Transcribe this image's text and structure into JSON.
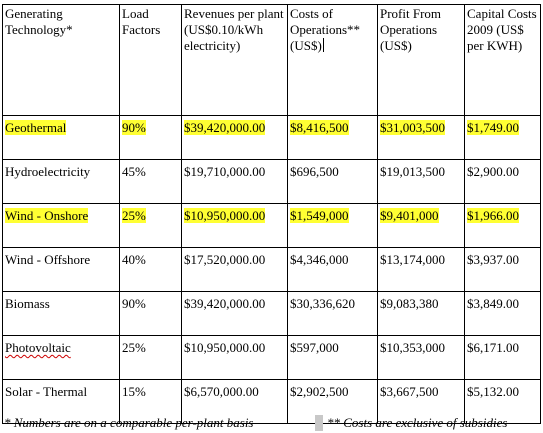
{
  "table": {
    "headers": [
      "Generating Technology*",
      "Load Factors",
      "Revenues per plant (US$0.10/kWh electricity)",
      "Costs of Operations** (US$)",
      "Profit From Operations (US$)",
      "Capital Costs 2009 (US$ per KWH)"
    ],
    "rows": [
      {
        "tech": "Geothermal",
        "load": "90%",
        "revenue": "$39,420,000.00",
        "costs": "$8,416,500",
        "profit": "$31,003,500",
        "capital": "$1,749.00",
        "highlighted": true
      },
      {
        "tech": "Hydroelectricity",
        "load": "45%",
        "revenue": "$19,710,000.00",
        "costs": "$696,500",
        "profit": "$19,013,500",
        "capital": "$2,900.00",
        "highlighted": false
      },
      {
        "tech": "Wind - Onshore",
        "load": "25%",
        "revenue": "$10,950,000.00",
        "costs": "$1,549,000",
        "profit": "$9,401,000",
        "capital": "$1,966.00",
        "highlighted": true
      },
      {
        "tech": "Wind - Offshore",
        "load": "40%",
        "revenue": "$17,520,000.00",
        "costs": "$4,346,000",
        "profit": "$13,174,000",
        "capital": "$3,937.00",
        "highlighted": false
      },
      {
        "tech": "Biomass",
        "load": "90%",
        "revenue": "$39,420,000.00",
        "costs": "$30,336,620",
        "profit": "$9,083,380",
        "capital": "$3,849.00",
        "highlighted": false
      },
      {
        "tech": "Photovoltaic",
        "load": "25%",
        "revenue": "$10,950,000.00",
        "costs": "$597,000",
        "profit": "$10,353,000",
        "capital": "$6,171.00",
        "highlighted": false
      },
      {
        "tech": "Solar - Thermal",
        "load": "15%",
        "revenue": "$6,570,000.00",
        "costs": "$2,902,500",
        "profit": "$3,667,500",
        "capital": "$5,132.00",
        "highlighted": false
      }
    ]
  },
  "footnotes": {
    "left": "* Numbers are on a comparable per-plant basis",
    "right": "** Costs are exclusive of subsidies"
  },
  "colors": {
    "highlight": "#ffff33",
    "spellcheck": "#cc0000"
  }
}
